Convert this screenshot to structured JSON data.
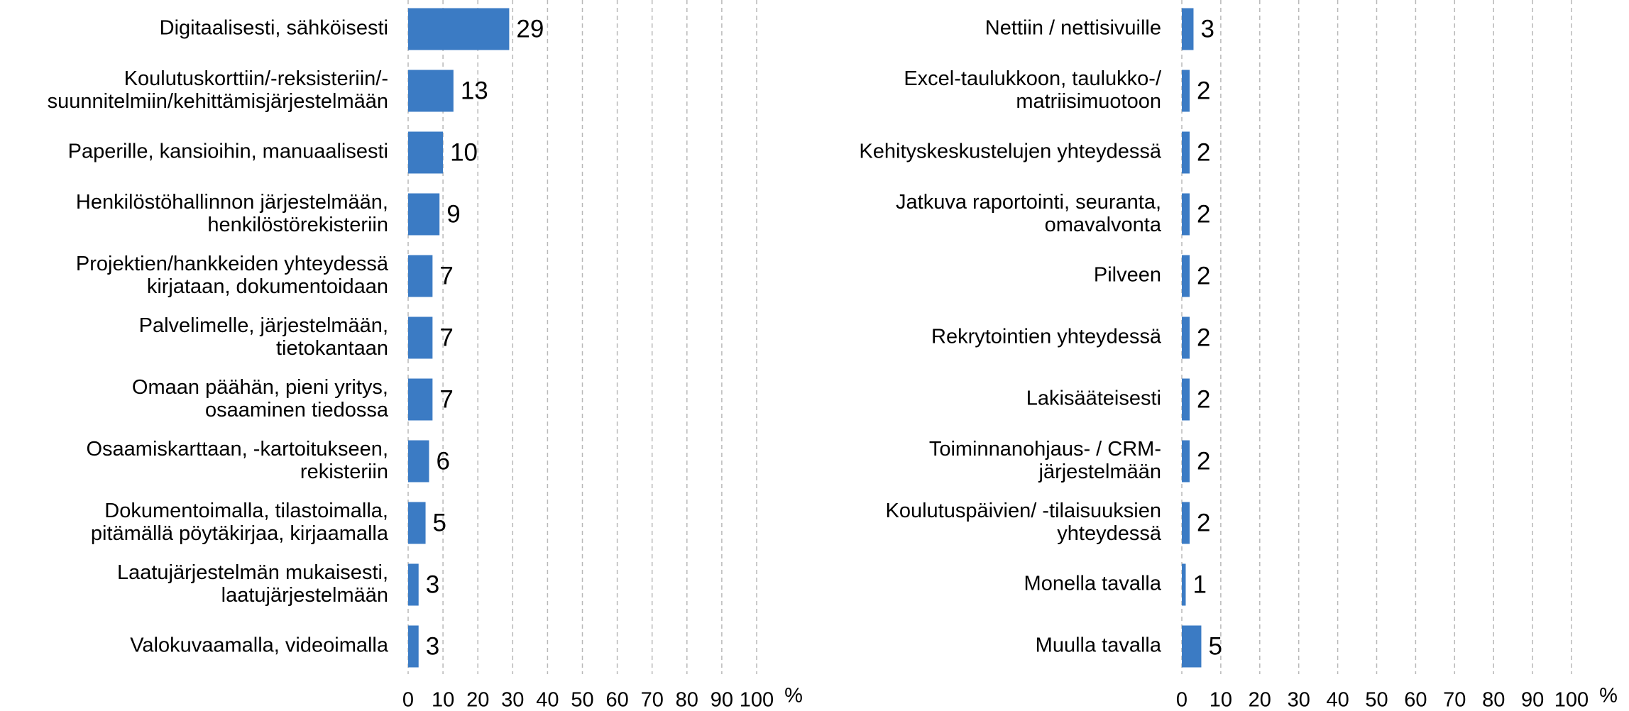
{
  "chart_data": [
    {
      "type": "bar",
      "orientation": "horizontal",
      "xlabel": "%",
      "color": "#3b7bc4",
      "grid": true,
      "categories": [
        "Digitaalisesti, sähköisesti",
        "Koulutuskorttiin/-reksisteriin/-\nsuunnitelmiin/kehittämisjärjestelmään",
        "Paperille, kansioihin, manuaalisesti",
        "Henkilöstöhallinnon järjestelmään,\nhenkilöstörekisteriin",
        "Projektien/hankkeiden yhteydessä\nkirjataan, dokumentoidaan",
        "Palvelimelle, järjestelmään,\ntietokantaan",
        "Omaan päähän, pieni yritys,\nosaaminen tiedossa",
        "Osaamiskarttaan, -kartoitukseen,\nrekisteriin",
        "Dokumentoimalla, tilastoimalla,\npitämällä pöytäkirjaa, kirjaamalla",
        "Laatujärjestelmän mukaisesti,\nlaatujärjestelmään",
        "Valokuvaamalla, videoimalla"
      ],
      "values": [
        29,
        13,
        10,
        9,
        7,
        7,
        7,
        6,
        5,
        3,
        3
      ],
      "xlim": [
        0,
        100
      ],
      "xticks": [
        0,
        10,
        20,
        30,
        40,
        50,
        60,
        70,
        80,
        90,
        100
      ]
    },
    {
      "type": "bar",
      "orientation": "horizontal",
      "xlabel": "%",
      "color": "#3b7bc4",
      "grid": true,
      "categories": [
        "Nettiin / nettisivuille",
        "Excel-taulukkoon, taulukko-/\nmatriisimuotoon",
        "Kehityskeskustelujen yhteydessä",
        "Jatkuva raportointi, seuranta,\nomavalvonta",
        "Pilveen",
        "Rekrytointien yhteydessä",
        "Lakisääteisesti",
        "Toiminnanohjaus- / CRM-\njärjestelmään",
        "Koulutuspäivien/ -tilaisuuksien\nyhteydessä",
        "Monella tavalla",
        "Muulla tavalla"
      ],
      "values": [
        3,
        2,
        2,
        2,
        2,
        2,
        2,
        2,
        2,
        1,
        5
      ],
      "xlim": [
        0,
        100
      ],
      "xticks": [
        0,
        10,
        20,
        30,
        40,
        50,
        60,
        70,
        80,
        90,
        100
      ]
    }
  ]
}
